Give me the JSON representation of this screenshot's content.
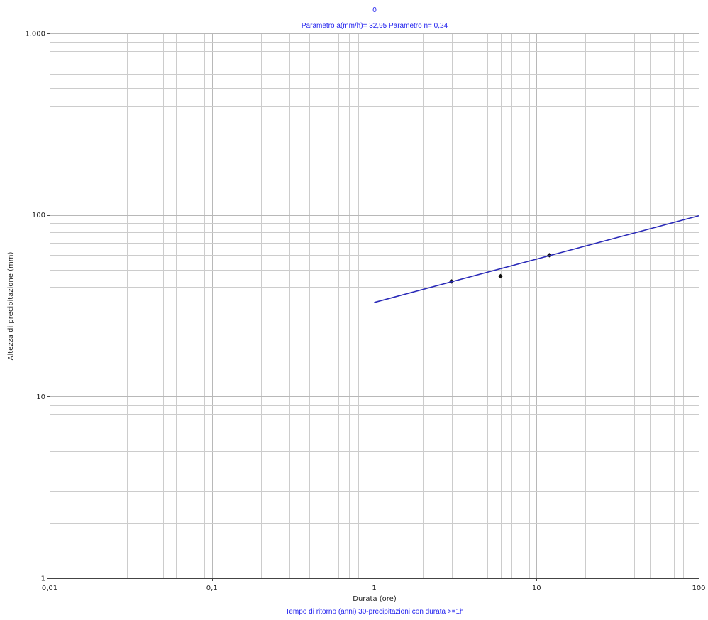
{
  "chart_data": {
    "type": "scatter",
    "x_scale": "log",
    "y_scale": "log",
    "title": "0",
    "subtitle": "Parametro a(mm/h)= 32,95 Parametro n= 0,24",
    "xlabel": "Durata (ore)",
    "ylabel": "Altezza di precipitazione (mm)",
    "footer": "Tempo di ritorno (anni) 30-precipitazioni con durata >=1h",
    "xlim": [
      0.01,
      100
    ],
    "ylim": [
      1,
      1000
    ],
    "x_ticks": [
      {
        "value": 0.01,
        "label": "0,01"
      },
      {
        "value": 0.1,
        "label": "0,1"
      },
      {
        "value": 1,
        "label": "1"
      },
      {
        "value": 10,
        "label": "10"
      },
      {
        "value": 100,
        "label": "100"
      }
    ],
    "y_ticks": [
      {
        "value": 1,
        "label": "1"
      },
      {
        "value": 10,
        "label": "10"
      },
      {
        "value": 100,
        "label": "100"
      },
      {
        "value": 1000,
        "label": "1.000"
      }
    ],
    "grid": true,
    "legend": "none",
    "series": [
      {
        "kind": "points",
        "color": "#111111",
        "points": [
          {
            "x": 3,
            "y": 43
          },
          {
            "x": 6,
            "y": 46
          },
          {
            "x": 12,
            "y": 60
          }
        ]
      },
      {
        "kind": "line",
        "color": "#2a2ab8",
        "points": [
          {
            "x": 1,
            "y": 32.95
          },
          {
            "x": 100,
            "y": 99
          }
        ]
      }
    ]
  }
}
